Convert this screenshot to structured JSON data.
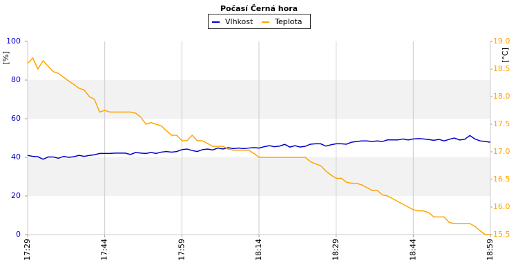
{
  "chart_data": {
    "type": "line",
    "title": "Počasí Černá hora",
    "categories": [
      "17:29",
      null,
      null,
      null,
      null,
      null,
      null,
      null,
      null,
      null,
      null,
      null,
      null,
      null,
      null,
      "17:44",
      null,
      null,
      null,
      null,
      null,
      null,
      null,
      null,
      null,
      null,
      null,
      null,
      null,
      null,
      "17:59",
      null,
      null,
      null,
      null,
      null,
      null,
      null,
      null,
      null,
      null,
      null,
      null,
      null,
      null,
      "18:14",
      null,
      null,
      null,
      null,
      null,
      null,
      null,
      null,
      null,
      null,
      null,
      null,
      null,
      null,
      "18:29",
      null,
      null,
      null,
      null,
      null,
      null,
      null,
      null,
      null,
      null,
      null,
      null,
      null,
      null,
      "18:44",
      null,
      null,
      null,
      null,
      null,
      null,
      null,
      null,
      null,
      null,
      null,
      null,
      null,
      null,
      "18:59"
    ],
    "ylabel": "[%]",
    "y2label": "[°C]",
    "ylim": [
      0,
      100
    ],
    "yticks": [
      0,
      20,
      40,
      60,
      80,
      100
    ],
    "y2lim": [
      15.5,
      19.0
    ],
    "y2ticks": [
      15.5,
      {
        "value": 16,
        "label": "16.0"
      },
      16.5,
      {
        "value": 17,
        "label": "17.0"
      },
      17.5,
      {
        "value": 18,
        "label": "18.0"
      },
      18.5,
      {
        "value": 19,
        "label": "19.0"
      }
    ],
    "grid": true,
    "series": [
      {
        "name": "Vlhkost",
        "color": "#0000cc",
        "values": [
          41,
          40.5,
          40.3,
          39,
          40.2,
          40.2,
          39.5,
          40.5,
          40,
          40.3,
          41,
          40.5,
          41,
          41.3,
          42,
          42,
          42,
          42.2,
          42.2,
          42.2,
          41.5,
          42.5,
          42.2,
          42,
          42.5,
          42,
          42.7,
          43,
          42.7,
          43,
          44,
          44.3,
          43.5,
          43,
          44,
          44.3,
          43.8,
          44.8,
          44.3,
          45,
          44.5,
          44.8,
          44.5,
          44.8,
          45,
          44.8,
          45.5,
          46,
          45.5,
          45.8,
          46.7,
          45.3,
          46,
          45.3,
          45.7,
          46.8,
          47,
          47,
          45.8,
          46.5,
          47,
          47,
          46.8,
          47.8,
          48.2,
          48.5,
          48.5,
          48.2,
          48.5,
          48.2,
          49,
          49,
          49,
          49.5,
          49,
          49.5,
          49.7,
          49.5,
          49.2,
          48.8,
          49.3,
          48.5,
          49.3,
          50,
          49,
          49.3,
          51.3,
          49.5,
          48.5,
          48.2,
          47.8
        ]
      },
      {
        "name": "Teplota",
        "color": "#ffa500",
        "axis": "y2",
        "values": [
          18.6,
          18.7,
          18.5,
          18.65,
          18.55,
          18.45,
          18.42,
          18.35,
          18.28,
          18.22,
          18.15,
          18.12,
          18.0,
          17.95,
          17.72,
          17.75,
          17.72,
          17.72,
          17.72,
          17.72,
          17.72,
          17.7,
          17.63,
          17.5,
          17.53,
          17.5,
          17.47,
          17.38,
          17.3,
          17.3,
          17.2,
          17.2,
          17.3,
          17.2,
          17.2,
          17.15,
          17.1,
          17.1,
          17.1,
          17.05,
          17.03,
          17.03,
          17.03,
          17.03,
          16.97,
          16.9,
          16.9,
          16.9,
          16.9,
          16.9,
          16.9,
          16.9,
          16.9,
          16.9,
          16.9,
          16.82,
          16.78,
          16.75,
          16.65,
          16.58,
          16.52,
          16.52,
          16.45,
          16.43,
          16.43,
          16.4,
          16.35,
          16.3,
          16.3,
          16.22,
          16.2,
          16.15,
          16.1,
          16.05,
          16.0,
          15.95,
          15.93,
          15.93,
          15.9,
          15.82,
          15.82,
          15.82,
          15.72,
          15.7,
          15.7,
          15.7,
          15.7,
          15.65,
          15.57,
          15.5,
          15.5
        ]
      }
    ]
  }
}
